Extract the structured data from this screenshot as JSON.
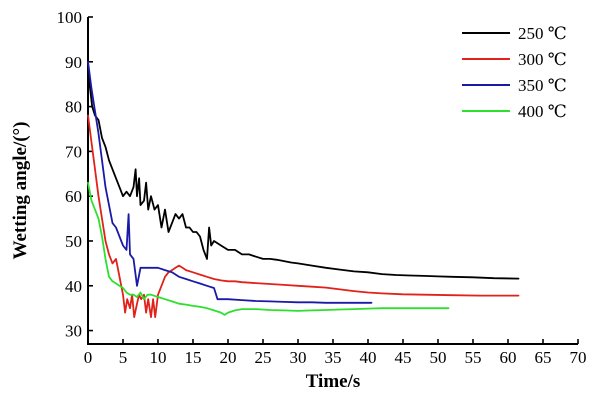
{
  "chart_data": {
    "type": "line",
    "xlabel": "Time/s",
    "ylabel": "Wetting angle/(°)",
    "xlim": [
      0,
      70
    ],
    "ylim": [
      27,
      100
    ],
    "xticks": [
      0,
      5,
      10,
      15,
      20,
      25,
      30,
      35,
      40,
      45,
      50,
      55,
      60,
      65,
      70
    ],
    "yticks": [
      30,
      40,
      50,
      60,
      70,
      80,
      90,
      100
    ],
    "grid": false,
    "legend_position": "top-right",
    "series": [
      {
        "name": "250 ℃",
        "color": "#000000",
        "points": [
          [
            0,
            88
          ],
          [
            0.3,
            84
          ],
          [
            0.6,
            80
          ],
          [
            1,
            78
          ],
          [
            1.5,
            77
          ],
          [
            2,
            73
          ],
          [
            2.5,
            71
          ],
          [
            3,
            68
          ],
          [
            3.5,
            66
          ],
          [
            4,
            64
          ],
          [
            4.5,
            62
          ],
          [
            5,
            60
          ],
          [
            5.5,
            61
          ],
          [
            6,
            60
          ],
          [
            6.5,
            62
          ],
          [
            6.8,
            66
          ],
          [
            7,
            60
          ],
          [
            7.3,
            64
          ],
          [
            7.5,
            58
          ],
          [
            8,
            59
          ],
          [
            8.3,
            63
          ],
          [
            8.6,
            57
          ],
          [
            9,
            60
          ],
          [
            9.5,
            57
          ],
          [
            10,
            58
          ],
          [
            10.5,
            53
          ],
          [
            11,
            57
          ],
          [
            11.5,
            52
          ],
          [
            12,
            54
          ],
          [
            12.5,
            56
          ],
          [
            13,
            55
          ],
          [
            13.5,
            56
          ],
          [
            14,
            53
          ],
          [
            14.5,
            53
          ],
          [
            15,
            52
          ],
          [
            15.5,
            52
          ],
          [
            16,
            51
          ],
          [
            16.5,
            48
          ],
          [
            17,
            46
          ],
          [
            17.3,
            53
          ],
          [
            17.6,
            49
          ],
          [
            18,
            50
          ],
          [
            19,
            49
          ],
          [
            20,
            48
          ],
          [
            21,
            48
          ],
          [
            22,
            47
          ],
          [
            23,
            47
          ],
          [
            24,
            46.5
          ],
          [
            25,
            46
          ],
          [
            26,
            46
          ],
          [
            27,
            45.8
          ],
          [
            28,
            45.5
          ],
          [
            29,
            45.2
          ],
          [
            30,
            45
          ],
          [
            32,
            44.5
          ],
          [
            34,
            44
          ],
          [
            36,
            43.6
          ],
          [
            38,
            43.2
          ],
          [
            40,
            43
          ],
          [
            42,
            42.6
          ],
          [
            44,
            42.4
          ],
          [
            46,
            42.3
          ],
          [
            48,
            42.2
          ],
          [
            50,
            42.1
          ],
          [
            52,
            42
          ],
          [
            55,
            41.9
          ],
          [
            58,
            41.7
          ],
          [
            61.5,
            41.6
          ]
        ]
      },
      {
        "name": "300 ℃",
        "color": "#e0221a",
        "points": [
          [
            0,
            78
          ],
          [
            0.5,
            72
          ],
          [
            1,
            66
          ],
          [
            1.5,
            60
          ],
          [
            2,
            55
          ],
          [
            2.5,
            50
          ],
          [
            3,
            47
          ],
          [
            3.5,
            45
          ],
          [
            4,
            46
          ],
          [
            4.5,
            42
          ],
          [
            5,
            38
          ],
          [
            5.3,
            34
          ],
          [
            5.6,
            37
          ],
          [
            6,
            35
          ],
          [
            6.3,
            38
          ],
          [
            6.6,
            33
          ],
          [
            7,
            36
          ],
          [
            7.3,
            38
          ],
          [
            7.6,
            37
          ],
          [
            8,
            38
          ],
          [
            8.3,
            34
          ],
          [
            8.6,
            37
          ],
          [
            9,
            33
          ],
          [
            9.3,
            37
          ],
          [
            9.6,
            33
          ],
          [
            10,
            38
          ],
          [
            10.5,
            40
          ],
          [
            11,
            42
          ],
          [
            11.5,
            43
          ],
          [
            12,
            43.5
          ],
          [
            12.5,
            44
          ],
          [
            13,
            44.5
          ],
          [
            13.5,
            44
          ],
          [
            14,
            43.5
          ],
          [
            15,
            43
          ],
          [
            16,
            42.5
          ],
          [
            17,
            42
          ],
          [
            18,
            41.5
          ],
          [
            19,
            41.2
          ],
          [
            20,
            41
          ],
          [
            21,
            41
          ],
          [
            22,
            40.8
          ],
          [
            24,
            40.6
          ],
          [
            26,
            40.4
          ],
          [
            28,
            40.2
          ],
          [
            30,
            40
          ],
          [
            32,
            39.8
          ],
          [
            34,
            39.6
          ],
          [
            36,
            39.2
          ],
          [
            38,
            38.8
          ],
          [
            40,
            38.5
          ],
          [
            42,
            38.3
          ],
          [
            45,
            38.1
          ],
          [
            48,
            38
          ],
          [
            52,
            37.9
          ],
          [
            56,
            37.8
          ],
          [
            61.5,
            37.8
          ]
        ]
      },
      {
        "name": "350 ℃",
        "color": "#1a1aa8",
        "points": [
          [
            0,
            90
          ],
          [
            0.5,
            84
          ],
          [
            1,
            79
          ],
          [
            1.5,
            74
          ],
          [
            2,
            68
          ],
          [
            2.5,
            62
          ],
          [
            3,
            58
          ],
          [
            3.5,
            54
          ],
          [
            4,
            53
          ],
          [
            4.5,
            51
          ],
          [
            5,
            49
          ],
          [
            5.5,
            48
          ],
          [
            5.8,
            56
          ],
          [
            6,
            47
          ],
          [
            6.5,
            46
          ],
          [
            7,
            40
          ],
          [
            7.5,
            44
          ],
          [
            8,
            44
          ],
          [
            9,
            44
          ],
          [
            10,
            44
          ],
          [
            11,
            43.5
          ],
          [
            12,
            43
          ],
          [
            13,
            42
          ],
          [
            14,
            41.5
          ],
          [
            15,
            41
          ],
          [
            16,
            40.5
          ],
          [
            17,
            40
          ],
          [
            18,
            39.5
          ],
          [
            18.5,
            37
          ],
          [
            19,
            37
          ],
          [
            20,
            37
          ],
          [
            22,
            36.8
          ],
          [
            24,
            36.6
          ],
          [
            26,
            36.5
          ],
          [
            28,
            36.4
          ],
          [
            30,
            36.3
          ],
          [
            32,
            36.3
          ],
          [
            34,
            36.2
          ],
          [
            36,
            36.2
          ],
          [
            38,
            36.2
          ],
          [
            40.5,
            36.2
          ]
        ]
      },
      {
        "name": "400 ℃",
        "color": "#2ee02e",
        "points": [
          [
            0,
            63
          ],
          [
            0.5,
            59
          ],
          [
            1,
            57
          ],
          [
            1.5,
            55
          ],
          [
            2,
            51
          ],
          [
            2.5,
            46
          ],
          [
            3,
            42
          ],
          [
            3.5,
            41
          ],
          [
            4,
            40.5
          ],
          [
            4.5,
            40
          ],
          [
            5,
            39.5
          ],
          [
            5.5,
            38.5
          ],
          [
            6,
            38
          ],
          [
            6.5,
            38
          ],
          [
            7,
            37.5
          ],
          [
            7.5,
            38.5
          ],
          [
            8,
            37
          ],
          [
            8.5,
            38
          ],
          [
            9,
            38
          ],
          [
            10,
            37.5
          ],
          [
            11,
            37
          ],
          [
            12,
            36.5
          ],
          [
            13,
            36
          ],
          [
            14,
            35.8
          ],
          [
            15,
            35.5
          ],
          [
            16,
            35.3
          ],
          [
            17,
            35
          ],
          [
            18,
            34.5
          ],
          [
            19,
            34
          ],
          [
            19.5,
            33.5
          ],
          [
            20,
            34
          ],
          [
            21,
            34.5
          ],
          [
            22,
            34.8
          ],
          [
            24,
            34.8
          ],
          [
            26,
            34.6
          ],
          [
            28,
            34.5
          ],
          [
            30,
            34.4
          ],
          [
            32,
            34.5
          ],
          [
            34,
            34.6
          ],
          [
            36,
            34.7
          ],
          [
            38,
            34.8
          ],
          [
            40,
            34.9
          ],
          [
            42,
            35
          ],
          [
            44,
            35
          ],
          [
            46,
            35
          ],
          [
            48,
            35
          ],
          [
            50,
            35
          ],
          [
            51.5,
            35
          ]
        ]
      }
    ]
  }
}
